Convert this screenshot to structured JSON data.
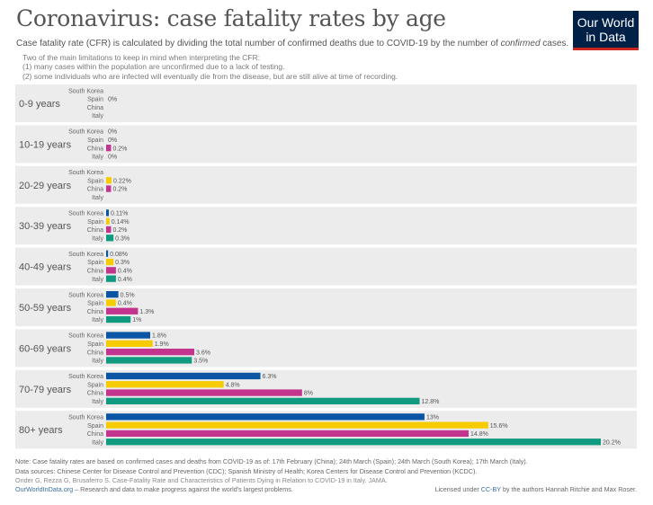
{
  "header": {
    "title": "Coronavirus: case fatality rates by age",
    "subtitle_pre": "Case fatality rate (CFR) is calculated by dividing the total number of confirmed deaths due to COVID-19 by the number of ",
    "subtitle_em": "confirmed",
    "subtitle_post": " cases.",
    "notes": [
      "Two of the main limitations to keep in mind when interpreting the CFR:",
      "(1) many cases within the population are unconfirmed due to a lack of testing.",
      "(2) some individuals who are infected will eventually die from the disease, but are still alive at time of recording."
    ]
  },
  "logo": {
    "line1": "Our World",
    "line2": "in Data"
  },
  "colors": {
    "South Korea": "#0a56a5",
    "Spain": "#f6cc00",
    "China": "#c2348e",
    "Italy": "#109a7f",
    "band": "#ececec"
  },
  "chart_data": {
    "type": "bar",
    "orientation": "horizontal",
    "unit": "%",
    "xlim": [
      0,
      20.2
    ],
    "groups": [
      {
        "label": "0-9 years",
        "rows": [
          {
            "country": "South Korea",
            "value": null,
            "label": ""
          },
          {
            "country": "Spain",
            "value": 0,
            "label": "0%"
          },
          {
            "country": "China",
            "value": null,
            "label": ""
          },
          {
            "country": "Italy",
            "value": null,
            "label": ""
          }
        ]
      },
      {
        "label": "10-19 years",
        "rows": [
          {
            "country": "South Korea",
            "value": 0,
            "label": "0%"
          },
          {
            "country": "Spain",
            "value": 0,
            "label": "0%"
          },
          {
            "country": "China",
            "value": 0.2,
            "label": "0.2%"
          },
          {
            "country": "Italy",
            "value": 0,
            "label": "0%"
          }
        ]
      },
      {
        "label": "20-29 years",
        "rows": [
          {
            "country": "South Korea",
            "value": null,
            "label": ""
          },
          {
            "country": "Spain",
            "value": 0.22,
            "label": "0.22%"
          },
          {
            "country": "China",
            "value": 0.2,
            "label": "0.2%"
          },
          {
            "country": "Italy",
            "value": null,
            "label": ""
          }
        ]
      },
      {
        "label": "30-39 years",
        "rows": [
          {
            "country": "South Korea",
            "value": 0.11,
            "label": "0.11%"
          },
          {
            "country": "Spain",
            "value": 0.14,
            "label": "0.14%"
          },
          {
            "country": "China",
            "value": 0.2,
            "label": "0.2%"
          },
          {
            "country": "Italy",
            "value": 0.3,
            "label": "0.3%"
          }
        ]
      },
      {
        "label": "40-49 years",
        "rows": [
          {
            "country": "South Korea",
            "value": 0.08,
            "label": "0.08%"
          },
          {
            "country": "Spain",
            "value": 0.3,
            "label": "0.3%"
          },
          {
            "country": "China",
            "value": 0.4,
            "label": "0.4%"
          },
          {
            "country": "Italy",
            "value": 0.4,
            "label": "0.4%"
          }
        ]
      },
      {
        "label": "50-59 years",
        "rows": [
          {
            "country": "South Korea",
            "value": 0.5,
            "label": "0.5%"
          },
          {
            "country": "Spain",
            "value": 0.4,
            "label": "0.4%"
          },
          {
            "country": "China",
            "value": 1.3,
            "label": "1.3%"
          },
          {
            "country": "Italy",
            "value": 1,
            "label": "1%"
          }
        ]
      },
      {
        "label": "60-69 years",
        "rows": [
          {
            "country": "South Korea",
            "value": 1.8,
            "label": "1.8%"
          },
          {
            "country": "Spain",
            "value": 1.9,
            "label": "1.9%"
          },
          {
            "country": "China",
            "value": 3.6,
            "label": "3.6%"
          },
          {
            "country": "Italy",
            "value": 3.5,
            "label": "3.5%"
          }
        ]
      },
      {
        "label": "70-79 years",
        "rows": [
          {
            "country": "South Korea",
            "value": 6.3,
            "label": "6.3%"
          },
          {
            "country": "Spain",
            "value": 4.8,
            "label": "4.8%"
          },
          {
            "country": "China",
            "value": 8,
            "label": "8%"
          },
          {
            "country": "Italy",
            "value": 12.8,
            "label": "12.8%"
          }
        ]
      },
      {
        "label": "80+ years",
        "rows": [
          {
            "country": "South Korea",
            "value": 13,
            "label": "13%"
          },
          {
            "country": "Spain",
            "value": 15.6,
            "label": "15.6%"
          },
          {
            "country": "China",
            "value": 14.8,
            "label": "14.8%"
          },
          {
            "country": "Italy",
            "value": 20.2,
            "label": "20.2%"
          }
        ]
      }
    ]
  },
  "footer": {
    "note": "Note: Case fatality rates are based on confirmed cases and deaths from COVID-19 as of: 17th February (China); 24th March (Spain); 24th March (South Korea); 17th March (Italy).",
    "sources": "Data sources: Chinese Center for Disease Control and Prevention (CDC); Spanish Ministry of Health; Korea Centers for Disease Control and Prevention (KCDC).",
    "reference": "Onder G, Rezza G, Brusaferro S. Case-Fatality Rate and Characteristics of Patients Dying in Relation to COVID-19 in Italy. JAMA.",
    "site": "OurWorldInData.org",
    "tagline": " – Research and data to make progress against the world's largest problems.",
    "license_pre": "Licensed under ",
    "license_link": "CC-BY",
    "license_post": " by the authors Hannah Ritchie and Max Roser."
  }
}
